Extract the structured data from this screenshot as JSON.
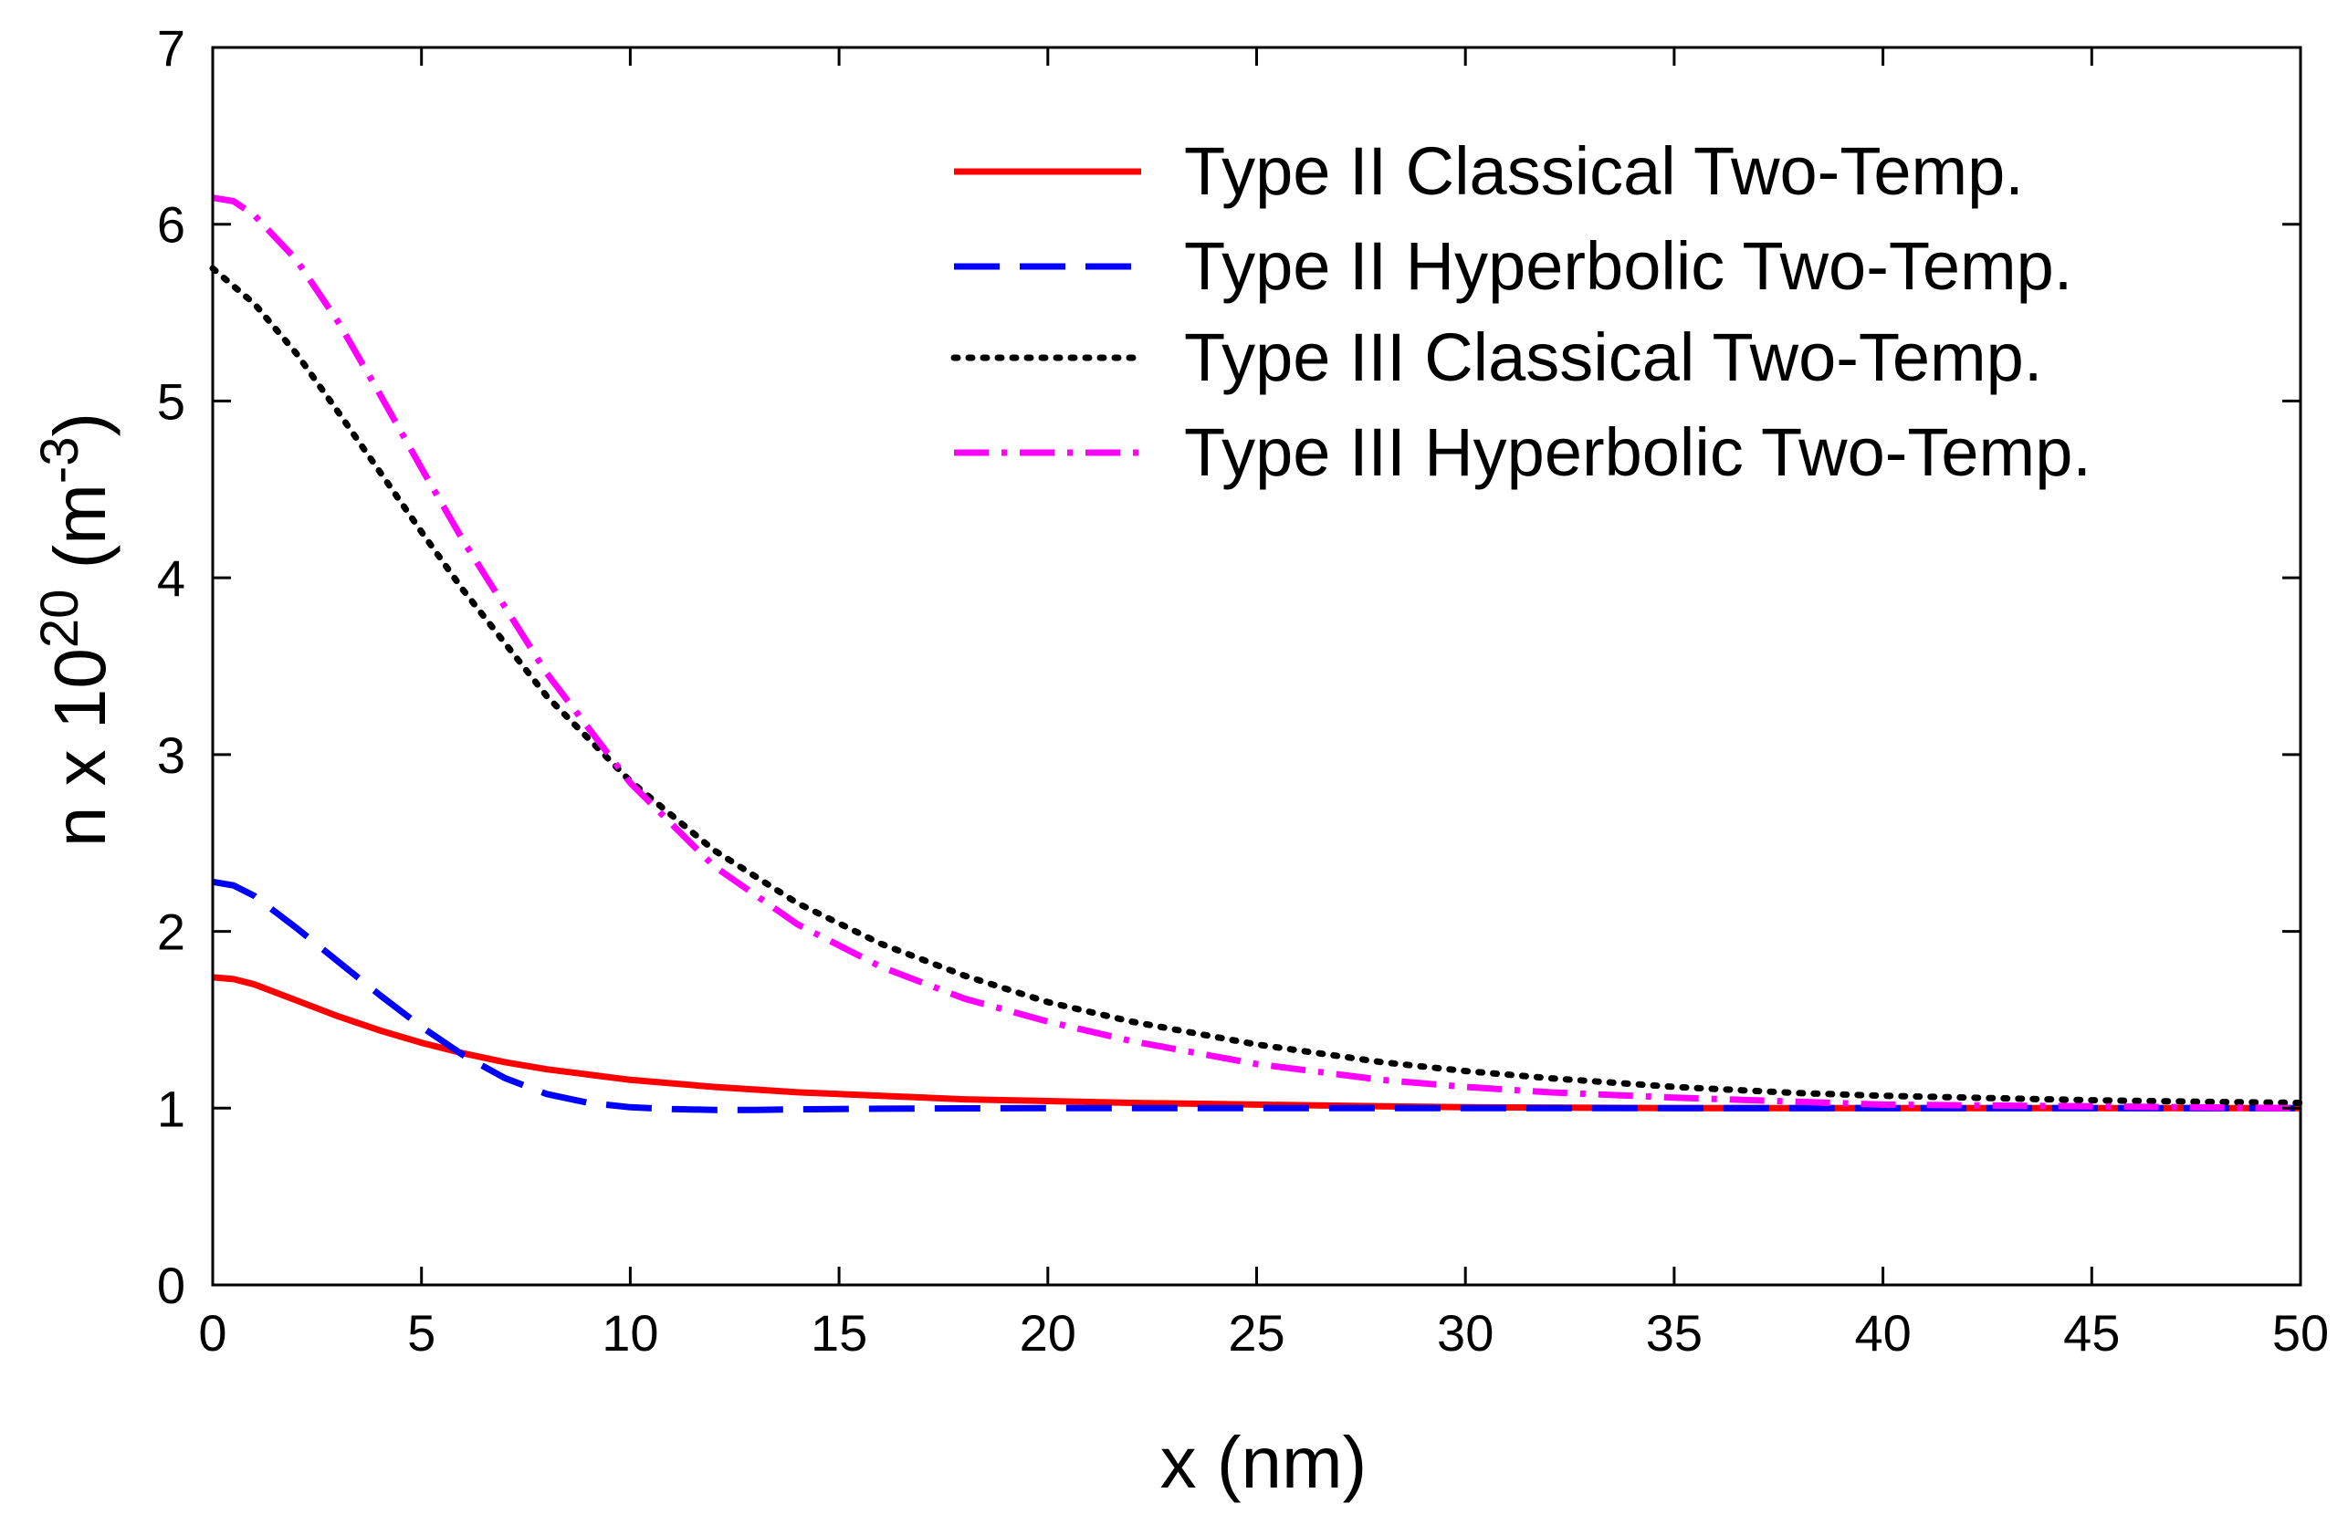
{
  "chart_data": {
    "type": "line",
    "xlabel": "x (nm)",
    "ylabel": {
      "prefix": "n x 10",
      "exp1": "20",
      "mid": " (m",
      "exp2": "-3",
      "suffix": ")"
    },
    "xlim": [
      0,
      50
    ],
    "ylim": [
      0,
      7
    ],
    "xticks": [
      0,
      5,
      10,
      15,
      20,
      25,
      30,
      35,
      40,
      45,
      50
    ],
    "yticks": [
      0,
      1,
      2,
      3,
      4,
      5,
      6,
      7
    ],
    "grid": false,
    "legend_position": "top-right",
    "series": [
      {
        "name": "Type II Classical Two-Temp.",
        "color": "#ff0000",
        "style": "solid",
        "x": [
          0,
          0.5,
          1,
          2,
          3,
          4,
          5,
          6,
          7,
          8,
          9,
          10,
          12,
          14,
          16,
          18,
          20,
          22,
          25,
          28,
          30,
          35,
          40,
          45,
          50
        ],
        "y": [
          1.74,
          1.73,
          1.7,
          1.61,
          1.52,
          1.44,
          1.37,
          1.31,
          1.26,
          1.22,
          1.19,
          1.16,
          1.12,
          1.09,
          1.07,
          1.05,
          1.04,
          1.03,
          1.02,
          1.01,
          1.005,
          1.0,
          1.0,
          1.0,
          1.0
        ]
      },
      {
        "name": "Type II Hyperbolic Two-Temp.",
        "color": "#0000ff",
        "style": "dashed",
        "x": [
          0,
          0.5,
          1,
          2,
          3,
          4,
          5,
          6,
          7,
          8,
          9,
          10,
          11,
          12,
          13,
          14,
          16,
          18,
          20,
          25,
          30,
          35,
          40,
          45,
          50
        ],
        "y": [
          2.28,
          2.26,
          2.2,
          2.02,
          1.83,
          1.64,
          1.46,
          1.3,
          1.17,
          1.08,
          1.03,
          1.005,
          0.995,
          0.99,
          0.99,
          0.993,
          0.997,
          0.999,
          1.0,
          1.0,
          1.0,
          1.0,
          1.0,
          1.0,
          1.0
        ]
      },
      {
        "name": "Type III Classical Two-Temp.",
        "color": "#000000",
        "style": "dotted",
        "x": [
          0,
          1,
          2,
          3,
          4,
          5,
          6,
          8,
          10,
          12,
          14,
          16,
          18,
          20,
          22,
          25,
          28,
          30,
          32,
          35,
          38,
          40,
          42,
          45,
          48,
          50
        ],
        "y": [
          5.75,
          5.55,
          5.27,
          4.94,
          4.6,
          4.26,
          3.93,
          3.33,
          2.85,
          2.46,
          2.16,
          1.93,
          1.75,
          1.6,
          1.49,
          1.36,
          1.26,
          1.21,
          1.17,
          1.12,
          1.085,
          1.07,
          1.06,
          1.045,
          1.035,
          1.03
        ]
      },
      {
        "name": "Type III Hyperbolic Two-Temp.",
        "color": "#ff00ff",
        "style": "dashdot",
        "x": [
          0,
          0.5,
          1,
          2,
          3,
          4,
          5,
          6,
          8,
          10,
          12,
          14,
          16,
          18,
          20,
          22,
          25,
          28,
          30,
          32,
          35,
          40,
          45,
          50
        ],
        "y": [
          6.15,
          6.13,
          6.05,
          5.8,
          5.45,
          5.04,
          4.62,
          4.21,
          3.46,
          2.84,
          2.37,
          2.04,
          1.8,
          1.62,
          1.49,
          1.38,
          1.25,
          1.16,
          1.12,
          1.09,
          1.06,
          1.02,
          1.01,
          1.0
        ]
      }
    ]
  }
}
